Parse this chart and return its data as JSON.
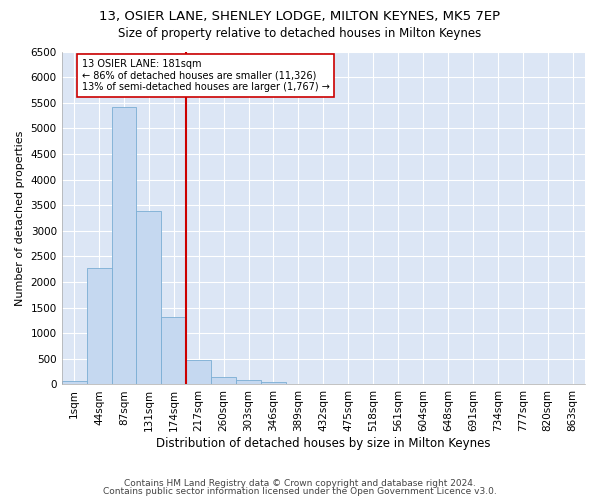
{
  "title1": "13, OSIER LANE, SHENLEY LODGE, MILTON KEYNES, MK5 7EP",
  "title2": "Size of property relative to detached houses in Milton Keynes",
  "xlabel": "Distribution of detached houses by size in Milton Keynes",
  "ylabel": "Number of detached properties",
  "bar_values": [
    75,
    2280,
    5420,
    3380,
    1310,
    475,
    155,
    80,
    55,
    0,
    0,
    0,
    0,
    0,
    0,
    0,
    0,
    0,
    0,
    0
  ],
  "bar_labels": [
    "1sqm",
    "44sqm",
    "87sqm",
    "131sqm",
    "174sqm",
    "217sqm",
    "260sqm",
    "303sqm",
    "346sqm",
    "389sqm",
    "432sqm",
    "475sqm",
    "518sqm",
    "561sqm",
    "604sqm",
    "648sqm",
    "691sqm",
    "734sqm",
    "777sqm",
    "820sqm",
    "863sqm"
  ],
  "bar_color": "#c5d8f0",
  "bar_edge_color": "#7aadd4",
  "vline_color": "#cc0000",
  "annotation_text": "13 OSIER LANE: 181sqm\n← 86% of detached houses are smaller (11,326)\n13% of semi-detached houses are larger (1,767) →",
  "annotation_box_color": "#ffffff",
  "annotation_box_edge": "#cc0000",
  "ylim": [
    0,
    6500
  ],
  "yticks": [
    0,
    500,
    1000,
    1500,
    2000,
    2500,
    3000,
    3500,
    4000,
    4500,
    5000,
    5500,
    6000,
    6500
  ],
  "footer1": "Contains HM Land Registry data © Crown copyright and database right 2024.",
  "footer2": "Contains public sector information licensed under the Open Government Licence v3.0.",
  "plot_background": "#dce6f5",
  "title1_fontsize": 9.5,
  "title2_fontsize": 8.5,
  "xlabel_fontsize": 8.5,
  "ylabel_fontsize": 8,
  "footer_fontsize": 6.5,
  "tick_fontsize": 7.5
}
